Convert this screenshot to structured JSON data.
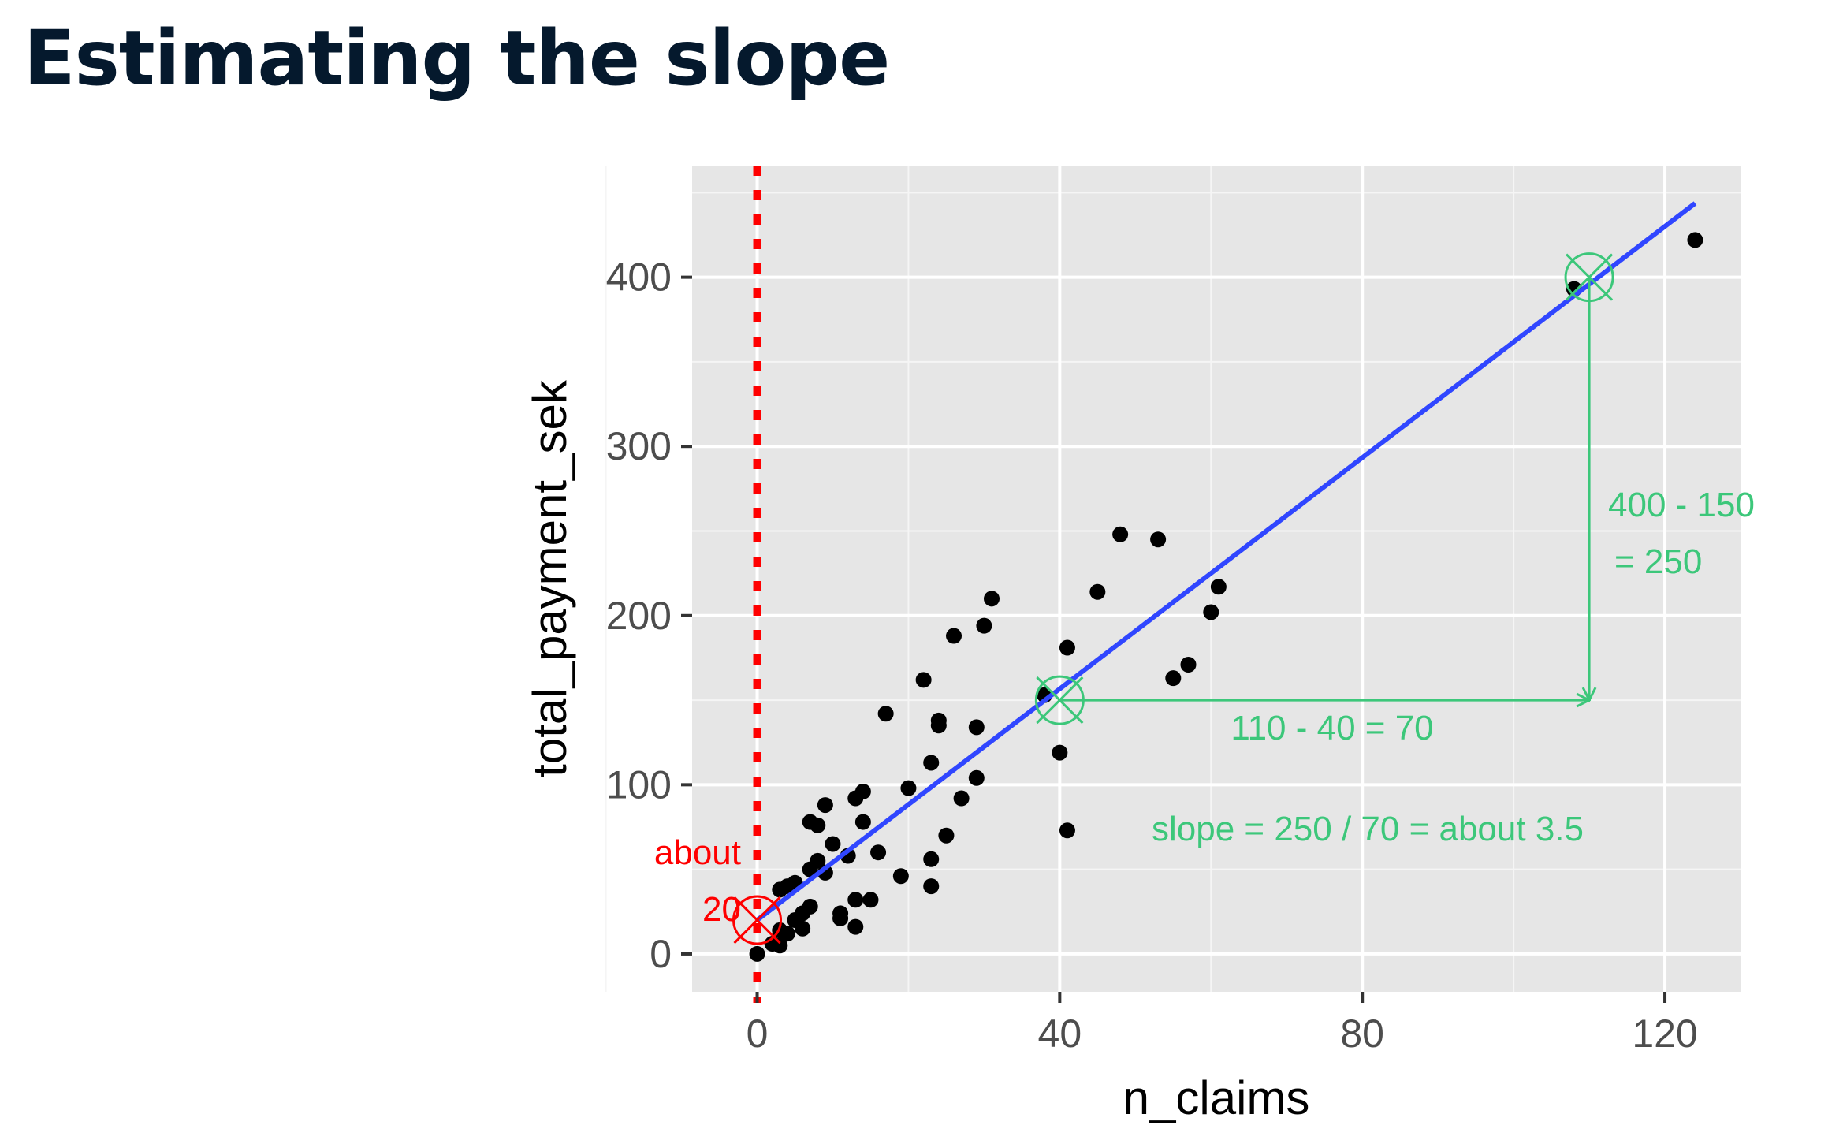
{
  "slide": {
    "title": "Estimating the slope"
  },
  "chart_data": {
    "type": "scatter",
    "title": "",
    "xlabel": "n_claims",
    "ylabel": "total_payment_sek",
    "xlim": [
      -8.6,
      130
    ],
    "ylim": [
      -22.4,
      466
    ],
    "xticks": [
      0,
      40,
      80,
      120
    ],
    "yticks": [
      0,
      100,
      200,
      300,
      400
    ],
    "xtick_labels": [
      "0",
      "40",
      "80",
      "120"
    ],
    "ytick_labels": [
      "0",
      "100",
      "200",
      "300",
      "400"
    ],
    "grid": true,
    "panel_color": "#e6e6e6",
    "points": [
      [
        0,
        0
      ],
      [
        2,
        6
      ],
      [
        3,
        5
      ],
      [
        3,
        14
      ],
      [
        4,
        12
      ],
      [
        4,
        40
      ],
      [
        5,
        20
      ],
      [
        6,
        15
      ],
      [
        6,
        24
      ],
      [
        7,
        28
      ],
      [
        7,
        50
      ],
      [
        7,
        78
      ],
      [
        8,
        55
      ],
      [
        8,
        76
      ],
      [
        9,
        48
      ],
      [
        9,
        88
      ],
      [
        10,
        65
      ],
      [
        11,
        24
      ],
      [
        11,
        21
      ],
      [
        12,
        58
      ],
      [
        13,
        32
      ],
      [
        13,
        16
      ],
      [
        13,
        92
      ],
      [
        14,
        96
      ],
      [
        14,
        78
      ],
      [
        15,
        32
      ],
      [
        16,
        60
      ],
      [
        17,
        142
      ],
      [
        19,
        46
      ],
      [
        20,
        98
      ],
      [
        22,
        162
      ],
      [
        23,
        40
      ],
      [
        23,
        56
      ],
      [
        23,
        113
      ],
      [
        24,
        135
      ],
      [
        24,
        138
      ],
      [
        25,
        70
      ],
      [
        26,
        188
      ],
      [
        27,
        92
      ],
      [
        29,
        134
      ],
      [
        29,
        104
      ],
      [
        30,
        194
      ],
      [
        31,
        210
      ],
      [
        38,
        153
      ],
      [
        40,
        119
      ],
      [
        41,
        181
      ],
      [
        41,
        73
      ],
      [
        45,
        214
      ],
      [
        48,
        248
      ],
      [
        53,
        245
      ],
      [
        55,
        163
      ],
      [
        57,
        171
      ],
      [
        60,
        202
      ],
      [
        61,
        217
      ],
      [
        108,
        393
      ],
      [
        124,
        422
      ],
      [
        3,
        38
      ],
      [
        5,
        42
      ]
    ],
    "point_color": "#000000",
    "regression_line": {
      "x": [
        0,
        124
      ],
      "y": [
        19.99,
        443.72
      ],
      "color": "#3046ff"
    },
    "intercept_guide": {
      "x": 0,
      "color": "#ff0000"
    },
    "markers": [
      {
        "x": 0,
        "y": 20,
        "color": "#ff0000"
      },
      {
        "x": 40,
        "y": 150,
        "color": "#3cc77a"
      },
      {
        "x": 110,
        "y": 400,
        "color": "#3cc77a"
      }
    ],
    "run_arrow": {
      "from": [
        40,
        150
      ],
      "to": [
        110,
        150
      ]
    },
    "rise_arrow": {
      "from": [
        110,
        400
      ],
      "to": [
        110,
        150
      ]
    },
    "annotations": {
      "intercept_line1": "about",
      "intercept_line2": "20",
      "run": "110 - 40 = 70",
      "rise_line1": "400 - 150",
      "rise_line2": "= 250",
      "slope": "slope = 250 / 70 = about 3.5"
    },
    "accent_color": "#3cc77a",
    "red_color": "#ff0000"
  }
}
